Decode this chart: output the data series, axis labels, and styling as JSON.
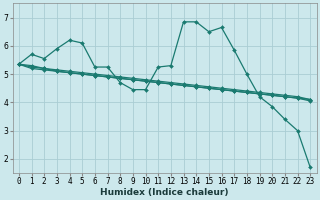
{
  "bg_color": "#cce8ec",
  "grid_color": "#aacdd4",
  "line_color": "#1a7a70",
  "xlabel": "Humidex (Indice chaleur)",
  "xlim": [
    -0.5,
    23.5
  ],
  "ylim": [
    1.5,
    7.5
  ],
  "yticks": [
    2,
    3,
    4,
    5,
    6,
    7
  ],
  "xticks": [
    0,
    1,
    2,
    3,
    4,
    5,
    6,
    7,
    8,
    9,
    10,
    11,
    12,
    13,
    14,
    15,
    16,
    17,
    18,
    19,
    20,
    21,
    22,
    23
  ],
  "series": [
    [
      5.35,
      5.7,
      5.55,
      5.9,
      6.2,
      6.1,
      5.25,
      5.25,
      4.7,
      4.45,
      4.45,
      5.25,
      5.3,
      6.85,
      6.85,
      6.5,
      6.65,
      5.85,
      5.0,
      4.2,
      3.85,
      3.4,
      3.0,
      1.7
    ],
    [
      5.35,
      5.3,
      5.2,
      5.1,
      5.05,
      5.0,
      4.95,
      4.9,
      4.85,
      4.8,
      4.75,
      4.7,
      4.65,
      4.6,
      4.55,
      4.5,
      4.45,
      4.4,
      4.35,
      4.3,
      4.25,
      4.2,
      4.15,
      4.1
    ],
    [
      5.35,
      5.25,
      5.2,
      5.15,
      5.1,
      5.05,
      5.0,
      4.95,
      4.9,
      4.85,
      4.8,
      4.75,
      4.7,
      4.65,
      4.6,
      4.55,
      4.5,
      4.45,
      4.4,
      4.35,
      4.3,
      4.25,
      4.2,
      4.1
    ],
    [
      5.35,
      5.2,
      5.15,
      5.1,
      5.05,
      5.0,
      4.95,
      4.9,
      4.85,
      4.8,
      4.75,
      4.7,
      4.65,
      4.6,
      4.55,
      4.5,
      4.45,
      4.4,
      4.35,
      4.3,
      4.25,
      4.2,
      4.15,
      4.05
    ]
  ],
  "marker_size": 2.0,
  "line_width": 0.9,
  "tick_fontsize": 5.5,
  "xlabel_fontsize": 6.5
}
